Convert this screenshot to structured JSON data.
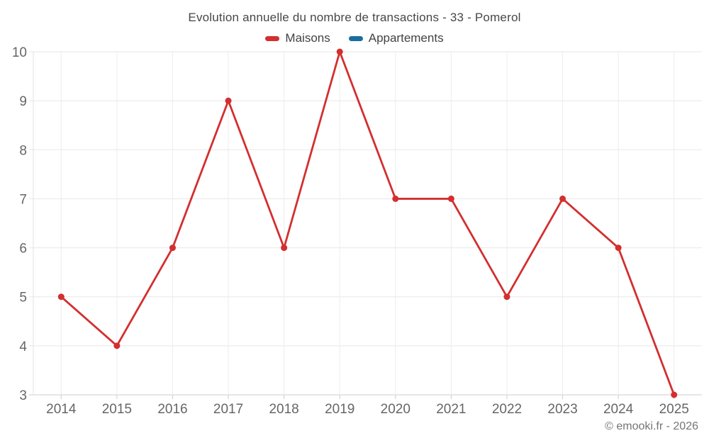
{
  "header": {
    "title": "Evolution annuelle du nombre de transactions - 33 - Pomerol"
  },
  "chart_data": {
    "type": "line",
    "title": "Evolution annuelle du nombre de transactions - 33 - Pomerol",
    "categories": [
      "2014",
      "2015",
      "2016",
      "2017",
      "2018",
      "2019",
      "2020",
      "2021",
      "2022",
      "2023",
      "2024",
      "2025"
    ],
    "series": [
      {
        "name": "Maisons",
        "color": "#d32f2f",
        "values": [
          5,
          4,
          6,
          9,
          6,
          10,
          7,
          7,
          5,
          7,
          6,
          3
        ]
      },
      {
        "name": "Appartements",
        "color": "#1b6d9e",
        "values": []
      }
    ],
    "xlabel": "",
    "ylabel": "",
    "ylim": [
      3,
      10
    ],
    "ytick_step": 1,
    "yticks": [
      3,
      4,
      5,
      6,
      7,
      8,
      9,
      10
    ],
    "grid": true,
    "legend_position": "top",
    "marker": "circle"
  },
  "footer": {
    "copyright": "© emooki.fr - 2026"
  }
}
